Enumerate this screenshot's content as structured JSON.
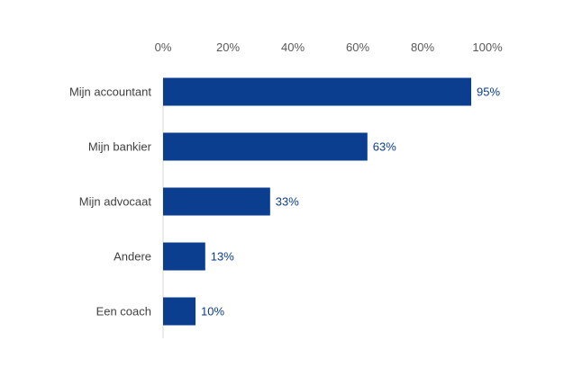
{
  "chart_data": {
    "type": "bar",
    "orientation": "horizontal",
    "categories": [
      "Mijn accountant",
      "Mijn bankier",
      "Mijn advocaat",
      "Andere",
      "Een coach"
    ],
    "values": [
      95,
      63,
      33,
      13,
      10
    ],
    "value_labels": [
      "95%",
      "63%",
      "33%",
      "13%",
      "10%"
    ],
    "xlim": [
      0,
      100
    ],
    "x_ticks": [
      0,
      20,
      40,
      60,
      80,
      100
    ],
    "x_tick_labels": [
      "0%",
      "20%",
      "40%",
      "60%",
      "80%",
      "100%"
    ],
    "x_axis_position": "top",
    "grid": false,
    "legend": "none",
    "title": "",
    "xlabel": "",
    "ylabel": "",
    "colors": {
      "bar": "#0b3e8e",
      "value_label": "#0b3e8e",
      "tick_label": "#595959",
      "category_label": "#404040",
      "axis_line": "#d9d9d9"
    }
  }
}
